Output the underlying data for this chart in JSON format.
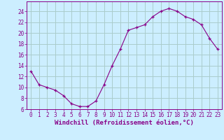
{
  "hours": [
    0,
    1,
    2,
    3,
    4,
    5,
    6,
    7,
    8,
    9,
    10,
    11,
    12,
    13,
    14,
    15,
    16,
    17,
    18,
    19,
    20,
    21,
    22,
    23
  ],
  "values": [
    13,
    10.5,
    10,
    9.5,
    8.5,
    7,
    6.5,
    6.5,
    7.5,
    10.5,
    14,
    17,
    20.5,
    21,
    21.5,
    23,
    24,
    24.5,
    24,
    23,
    22.5,
    21.5,
    19,
    17
  ],
  "line_color": "#880088",
  "marker": "+",
  "bg_color": "#cceeff",
  "grid_color": "#aacccc",
  "xlabel": "Windchill (Refroidissement éolien,°C)",
  "ylim": [
    6,
    25
  ],
  "yticks": [
    6,
    8,
    10,
    12,
    14,
    16,
    18,
    20,
    22,
    24
  ],
  "xticks": [
    0,
    1,
    2,
    3,
    4,
    5,
    6,
    7,
    8,
    9,
    10,
    11,
    12,
    13,
    14,
    15,
    16,
    17,
    18,
    19,
    20,
    21,
    22,
    23
  ],
  "label_fontsize": 6.5,
  "tick_fontsize": 5.5
}
